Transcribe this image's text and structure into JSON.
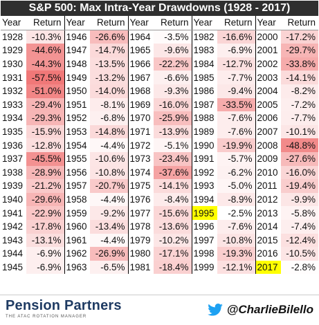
{
  "chart_data": {
    "type": "table",
    "title": "S&P 500: Max Intra-Year Drawdowns (1928 - 2017)",
    "headers": {
      "year": "Year",
      "return": "Return"
    },
    "columns": [
      [
        {
          "year": "1928",
          "ret": "-10.3%",
          "v": -10.3
        },
        {
          "year": "1929",
          "ret": "-44.6%",
          "v": -44.6
        },
        {
          "year": "1930",
          "ret": "-44.3%",
          "v": -44.3
        },
        {
          "year": "1931",
          "ret": "-57.5%",
          "v": -57.5
        },
        {
          "year": "1932",
          "ret": "-51.0%",
          "v": -51.0
        },
        {
          "year": "1933",
          "ret": "-29.4%",
          "v": -29.4
        },
        {
          "year": "1934",
          "ret": "-29.3%",
          "v": -29.3
        },
        {
          "year": "1935",
          "ret": "-15.9%",
          "v": -15.9
        },
        {
          "year": "1936",
          "ret": "-12.8%",
          "v": -12.8
        },
        {
          "year": "1937",
          "ret": "-45.5%",
          "v": -45.5
        },
        {
          "year": "1938",
          "ret": "-28.9%",
          "v": -28.9
        },
        {
          "year": "1939",
          "ret": "-21.2%",
          "v": -21.2
        },
        {
          "year": "1940",
          "ret": "-29.6%",
          "v": -29.6
        },
        {
          "year": "1941",
          "ret": "-22.9%",
          "v": -22.9
        },
        {
          "year": "1942",
          "ret": "-17.8%",
          "v": -17.8
        },
        {
          "year": "1943",
          "ret": "-13.1%",
          "v": -13.1
        },
        {
          "year": "1944",
          "ret": "-6.9%",
          "v": -6.9
        },
        {
          "year": "1945",
          "ret": "-6.9%",
          "v": -6.9
        }
      ],
      [
        {
          "year": "1946",
          "ret": "-26.6%",
          "v": -26.6
        },
        {
          "year": "1947",
          "ret": "-14.7%",
          "v": -14.7
        },
        {
          "year": "1948",
          "ret": "-13.5%",
          "v": -13.5
        },
        {
          "year": "1949",
          "ret": "-13.2%",
          "v": -13.2
        },
        {
          "year": "1950",
          "ret": "-14.0%",
          "v": -14.0
        },
        {
          "year": "1951",
          "ret": "-8.1%",
          "v": -8.1
        },
        {
          "year": "1952",
          "ret": "-6.8%",
          "v": -6.8
        },
        {
          "year": "1953",
          "ret": "-14.8%",
          "v": -14.8
        },
        {
          "year": "1954",
          "ret": "-4.4%",
          "v": -4.4
        },
        {
          "year": "1955",
          "ret": "-10.6%",
          "v": -10.6
        },
        {
          "year": "1956",
          "ret": "-10.8%",
          "v": -10.8
        },
        {
          "year": "1957",
          "ret": "-20.7%",
          "v": -20.7
        },
        {
          "year": "1958",
          "ret": "-4.4%",
          "v": -4.4
        },
        {
          "year": "1959",
          "ret": "-9.2%",
          "v": -9.2
        },
        {
          "year": "1960",
          "ret": "-13.4%",
          "v": -13.4
        },
        {
          "year": "1961",
          "ret": "-4.4%",
          "v": -4.4
        },
        {
          "year": "1962",
          "ret": "-26.9%",
          "v": -26.9
        },
        {
          "year": "1963",
          "ret": "-6.5%",
          "v": -6.5
        }
      ],
      [
        {
          "year": "1964",
          "ret": "-3.5%",
          "v": -3.5
        },
        {
          "year": "1965",
          "ret": "-9.6%",
          "v": -9.6
        },
        {
          "year": "1966",
          "ret": "-22.2%",
          "v": -22.2
        },
        {
          "year": "1967",
          "ret": "-6.6%",
          "v": -6.6
        },
        {
          "year": "1968",
          "ret": "-9.3%",
          "v": -9.3
        },
        {
          "year": "1969",
          "ret": "-16.0%",
          "v": -16.0
        },
        {
          "year": "1970",
          "ret": "-25.9%",
          "v": -25.9
        },
        {
          "year": "1971",
          "ret": "-13.9%",
          "v": -13.9
        },
        {
          "year": "1972",
          "ret": "-5.1%",
          "v": -5.1
        },
        {
          "year": "1973",
          "ret": "-23.4%",
          "v": -23.4
        },
        {
          "year": "1974",
          "ret": "-37.6%",
          "v": -37.6
        },
        {
          "year": "1975",
          "ret": "-14.1%",
          "v": -14.1
        },
        {
          "year": "1976",
          "ret": "-8.4%",
          "v": -8.4
        },
        {
          "year": "1977",
          "ret": "-15.6%",
          "v": -15.6
        },
        {
          "year": "1978",
          "ret": "-13.6%",
          "v": -13.6
        },
        {
          "year": "1979",
          "ret": "-10.2%",
          "v": -10.2
        },
        {
          "year": "1980",
          "ret": "-17.1%",
          "v": -17.1
        },
        {
          "year": "1981",
          "ret": "-18.4%",
          "v": -18.4
        }
      ],
      [
        {
          "year": "1982",
          "ret": "-16.6%",
          "v": -16.6
        },
        {
          "year": "1983",
          "ret": "-6.9%",
          "v": -6.9
        },
        {
          "year": "1984",
          "ret": "-12.7%",
          "v": -12.7
        },
        {
          "year": "1985",
          "ret": "-7.7%",
          "v": -7.7
        },
        {
          "year": "1986",
          "ret": "-9.4%",
          "v": -9.4
        },
        {
          "year": "1987",
          "ret": "-33.5%",
          "v": -33.5
        },
        {
          "year": "1988",
          "ret": "-7.6%",
          "v": -7.6
        },
        {
          "year": "1989",
          "ret": "-7.6%",
          "v": -7.6
        },
        {
          "year": "1990",
          "ret": "-19.9%",
          "v": -19.9
        },
        {
          "year": "1991",
          "ret": "-5.7%",
          "v": -5.7
        },
        {
          "year": "1992",
          "ret": "-6.2%",
          "v": -6.2
        },
        {
          "year": "1993",
          "ret": "-5.0%",
          "v": -5.0
        },
        {
          "year": "1994",
          "ret": "-8.9%",
          "v": -8.9
        },
        {
          "year": "1995",
          "ret": "-2.5%",
          "v": -2.5,
          "highlight": true
        },
        {
          "year": "1996",
          "ret": "-7.6%",
          "v": -7.6
        },
        {
          "year": "1997",
          "ret": "-10.8%",
          "v": -10.8
        },
        {
          "year": "1998",
          "ret": "-19.3%",
          "v": -19.3
        },
        {
          "year": "1999",
          "ret": "-12.1%",
          "v": -12.1
        }
      ],
      [
        {
          "year": "2000",
          "ret": "-17.2%",
          "v": -17.2
        },
        {
          "year": "2001",
          "ret": "-29.7%",
          "v": -29.7
        },
        {
          "year": "2002",
          "ret": "-33.8%",
          "v": -33.8
        },
        {
          "year": "2003",
          "ret": "-14.1%",
          "v": -14.1
        },
        {
          "year": "2004",
          "ret": "-8.2%",
          "v": -8.2
        },
        {
          "year": "2005",
          "ret": "-7.2%",
          "v": -7.2
        },
        {
          "year": "2006",
          "ret": "-7.7%",
          "v": -7.7
        },
        {
          "year": "2007",
          "ret": "-10.1%",
          "v": -10.1
        },
        {
          "year": "2008",
          "ret": "-48.8%",
          "v": -48.8
        },
        {
          "year": "2009",
          "ret": "-27.6%",
          "v": -27.6
        },
        {
          "year": "2010",
          "ret": "-16.0%",
          "v": -16.0
        },
        {
          "year": "2011",
          "ret": "-19.4%",
          "v": -19.4
        },
        {
          "year": "2012",
          "ret": "-9.9%",
          "v": -9.9
        },
        {
          "year": "2013",
          "ret": "-5.8%",
          "v": -5.8
        },
        {
          "year": "2014",
          "ret": "-7.4%",
          "v": -7.4
        },
        {
          "year": "2015",
          "ret": "-12.4%",
          "v": -12.4
        },
        {
          "year": "2016",
          "ret": "-10.5%",
          "v": -10.5
        },
        {
          "year": "2017",
          "ret": "-2.8%",
          "v": -2.8,
          "highlight": true
        }
      ]
    ],
    "color_scale": {
      "min": -57.5,
      "max": -2.5,
      "strong": "#f07878",
      "weak": "#ffffff"
    },
    "highlight_color": "#ffff00",
    "header_bg": "#2f2f2f"
  },
  "footer": {
    "logo_name": "Pension Partners",
    "logo_sub": "THE ATAC ROTATION MANAGER",
    "logo_icon": "pension-partners-logo",
    "twitter_icon": "twitter-bird-icon",
    "twitter_color": "#1da1f2",
    "handle": "@CharlieBilello"
  }
}
